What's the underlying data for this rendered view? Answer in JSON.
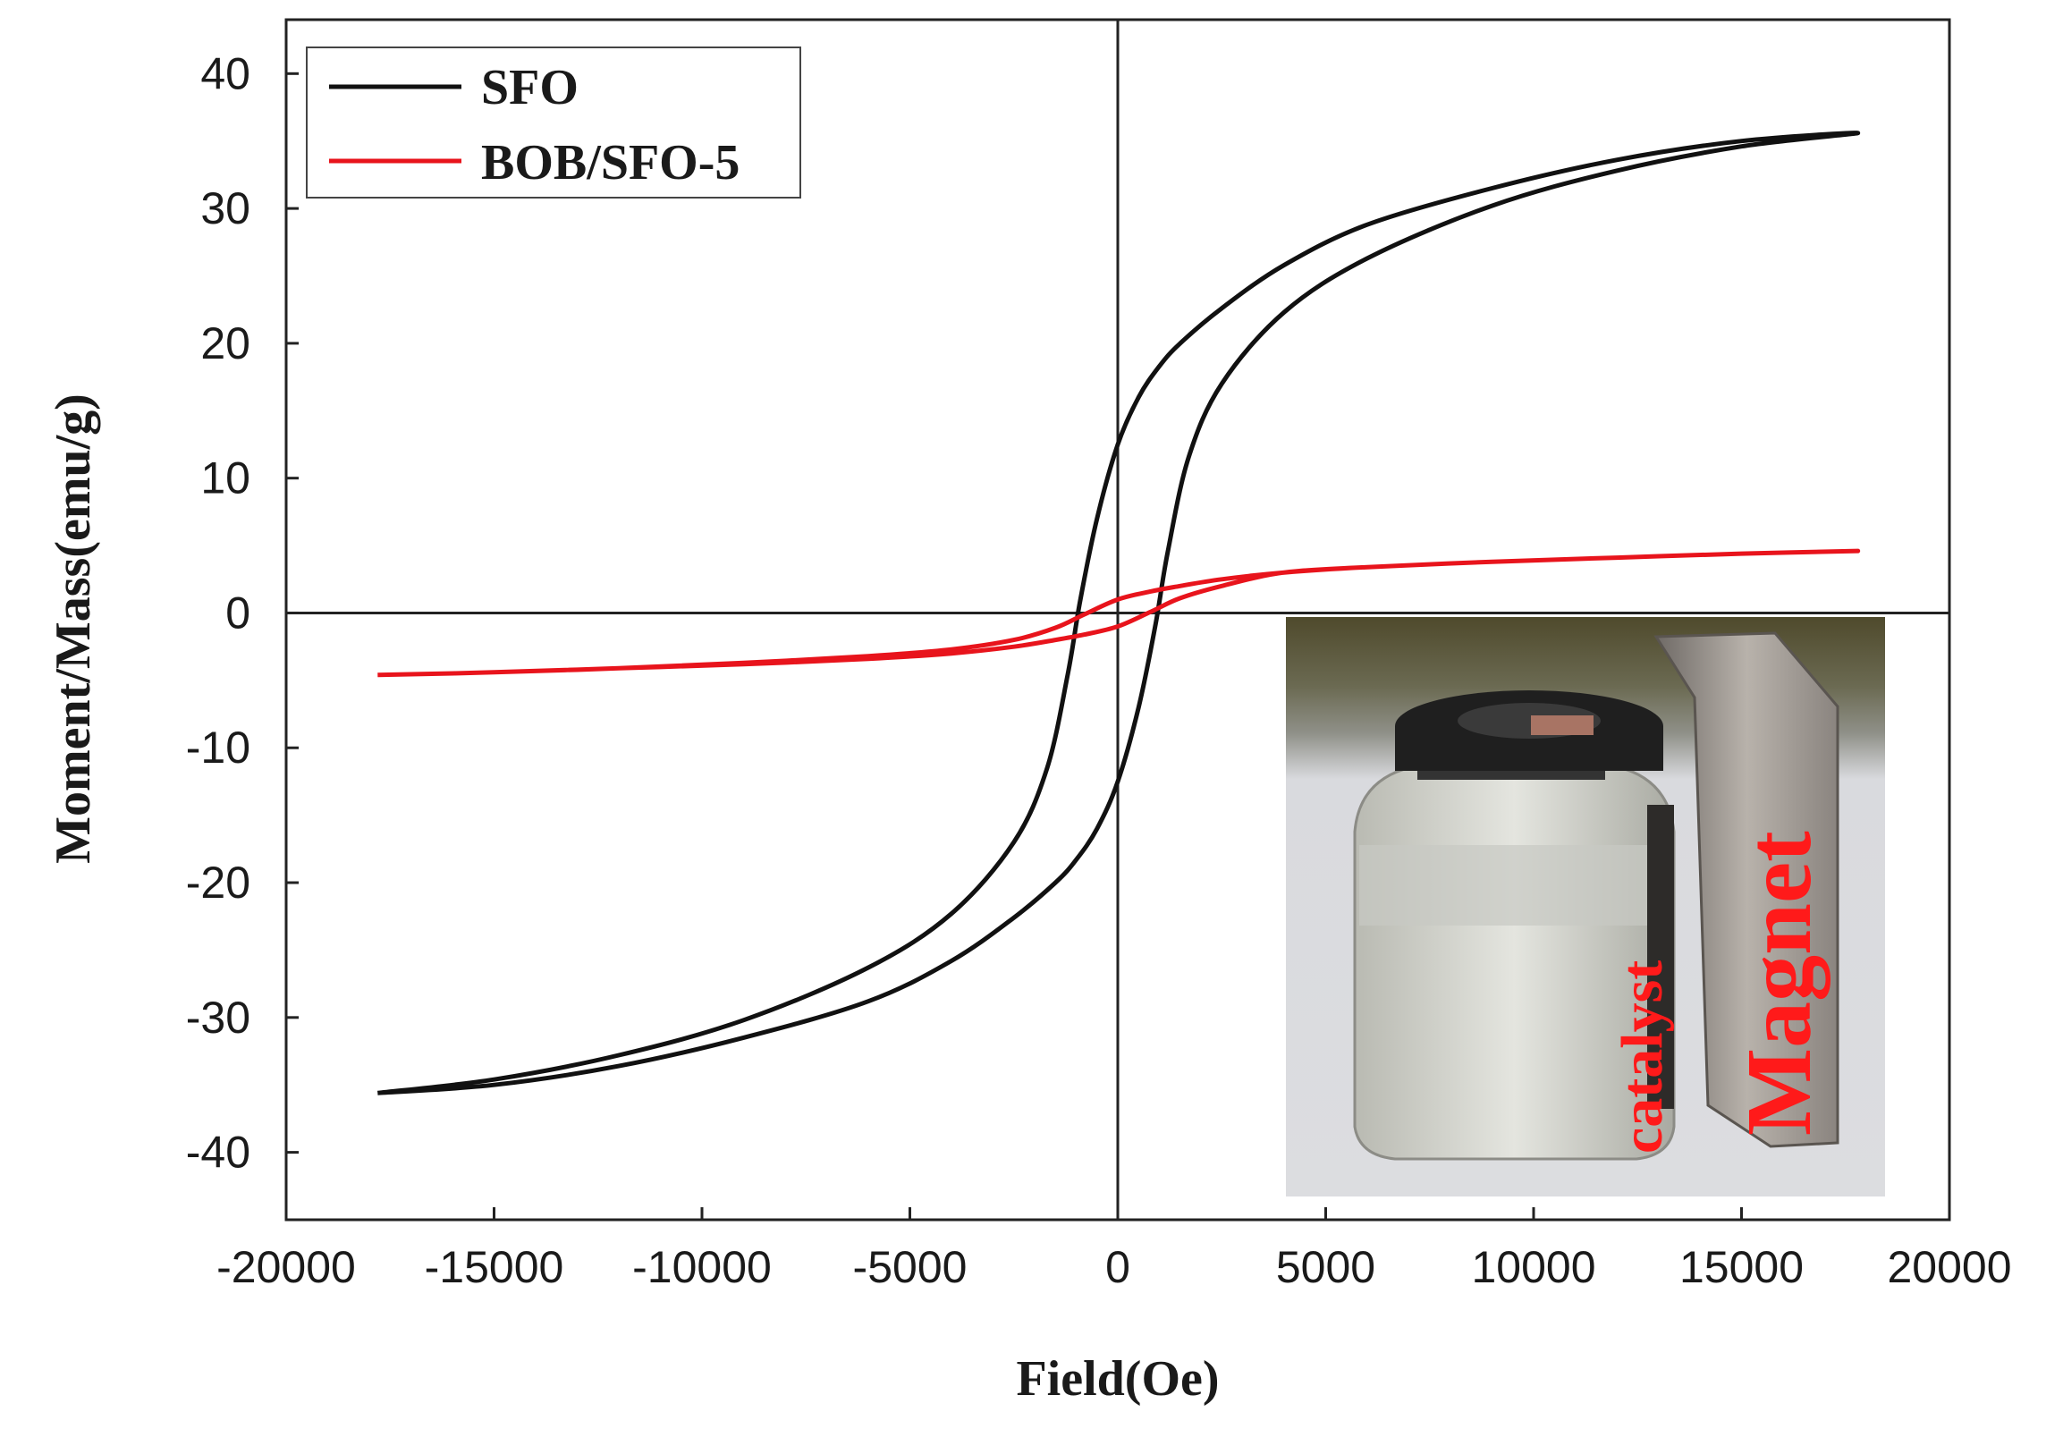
{
  "chart_data": {
    "type": "line",
    "xlabel": "Field(Oe)",
    "ylabel": "Moment/Mass(emu/g)",
    "xlim": [
      -20000,
      20000
    ],
    "ylim": [
      -45,
      44
    ],
    "x_ticks": [
      -20000,
      -15000,
      -10000,
      -5000,
      0,
      5000,
      10000,
      15000,
      20000
    ],
    "y_ticks": [
      -40,
      -30,
      -20,
      -10,
      0,
      10,
      20,
      30,
      40
    ],
    "grid": false,
    "legend_position": "top-left",
    "zero_lines": true,
    "series": [
      {
        "name": "SFO",
        "color": "#111111",
        "x": [
          -17800,
          -15000,
          -12000,
          -9000,
          -6000,
          -4000,
          -2500,
          -1700,
          -1200,
          -900,
          -500,
          0,
          500,
          1000,
          1500,
          2500,
          4000,
          6000,
          9000,
          12000,
          15000,
          17800,
          15000,
          12000,
          9000,
          6000,
          4000,
          2500,
          1700,
          1200,
          900,
          500,
          0,
          -500,
          -1000,
          -1500,
          -2500,
          -4000,
          -6000,
          -9000,
          -12000,
          -15000,
          -17800
        ],
        "y": [
          -35.6,
          -34.6,
          -32.8,
          -30.2,
          -26.3,
          -22.3,
          -17.0,
          -11.5,
          -4.5,
          1.0,
          7.0,
          12.5,
          16.0,
          18.3,
          20.0,
          22.6,
          25.8,
          28.8,
          31.5,
          33.6,
          35.0,
          35.6,
          34.6,
          32.8,
          30.2,
          26.3,
          22.3,
          17.0,
          11.5,
          4.5,
          -1.0,
          -7.0,
          -12.5,
          -16.0,
          -18.3,
          -20.0,
          -22.6,
          -25.8,
          -28.8,
          -31.5,
          -33.6,
          -35.0,
          -35.6
        ]
      },
      {
        "name": "BOB/SFO-5",
        "color": "#e8141c",
        "x": [
          -17800,
          -15000,
          -12000,
          -9000,
          -6000,
          -4000,
          -2500,
          -1500,
          -800,
          0,
          800,
          1500,
          2500,
          4000,
          6000,
          9000,
          12000,
          15000,
          17800,
          15000,
          12000,
          9000,
          6000,
          4000,
          2500,
          1500,
          800,
          0,
          -800,
          -1500,
          -2500,
          -4000,
          -6000,
          -9000,
          -12000,
          -15000,
          -17800
        ],
        "y": [
          -4.6,
          -4.4,
          -4.1,
          -3.7,
          -3.2,
          -2.7,
          -2.0,
          -1.1,
          -0.1,
          1.0,
          1.6,
          2.0,
          2.5,
          3.0,
          3.4,
          3.8,
          4.1,
          4.4,
          4.6,
          4.4,
          4.1,
          3.8,
          3.4,
          3.0,
          2.0,
          1.1,
          0.1,
          -1.0,
          -1.6,
          -2.0,
          -2.5,
          -3.0,
          -3.4,
          -3.8,
          -4.1,
          -4.4,
          -4.6
        ]
      }
    ],
    "inset": {
      "catalyst_label": "catalyst",
      "magnet_label": "Magnet"
    }
  }
}
